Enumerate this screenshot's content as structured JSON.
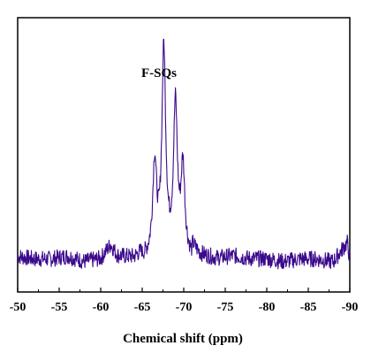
{
  "chart_data": {
    "type": "line",
    "title": "",
    "annotation": "F-SQs",
    "xlabel": "Chemical shift (ppm)",
    "ylabel": "",
    "x_reversed": true,
    "xlim": [
      -50,
      -90
    ],
    "xticks": [
      -50,
      -55,
      -60,
      -65,
      -70,
      -75,
      -80,
      -85,
      -90
    ],
    "tick_labels": [
      "-50",
      "-55",
      "-60",
      "-65",
      "-70",
      "-75",
      "-80",
      "-85",
      "-90"
    ],
    "y_ticks_shown": false,
    "ylim": [
      0,
      1
    ],
    "grid": false,
    "legend": "none",
    "line_color": "#3b0a8c",
    "baseline": 0.12,
    "noise_amplitude": 0.03,
    "peaks": [
      {
        "x": -66.5,
        "height": 0.46
      },
      {
        "x": -67.6,
        "height": 0.87
      },
      {
        "x": -69.0,
        "height": 0.66
      },
      {
        "x": -69.9,
        "height": 0.44
      }
    ],
    "series": [
      {
        "x": [
          -50,
          -52,
          -54,
          -56,
          -58,
          -60,
          -61.2,
          -62,
          -64,
          -65.5,
          -66.5,
          -67.0,
          -67.6,
          -68.3,
          -69.0,
          -69.5,
          -69.9,
          -70.6,
          -72,
          -74,
          -76,
          -78,
          -80,
          -82,
          -84,
          -86,
          -88,
          -89.7,
          -90
        ],
        "values": [
          0.13,
          0.12,
          0.12,
          0.13,
          0.11,
          0.12,
          0.17,
          0.13,
          0.12,
          0.14,
          0.46,
          0.17,
          0.87,
          0.16,
          0.66,
          0.21,
          0.44,
          0.16,
          0.13,
          0.12,
          0.13,
          0.12,
          0.12,
          0.11,
          0.12,
          0.12,
          0.11,
          0.18,
          0.12
        ]
      }
    ]
  }
}
